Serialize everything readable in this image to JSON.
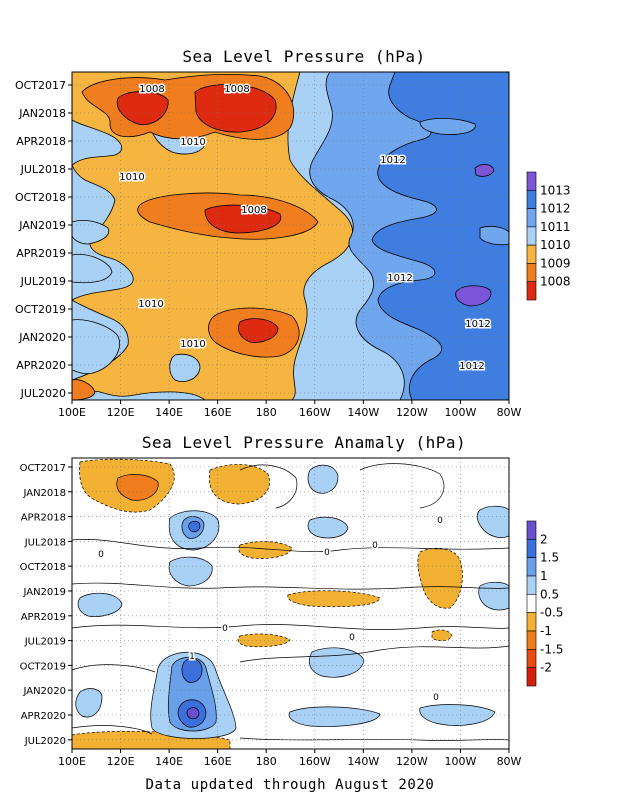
{
  "chart_data": [
    {
      "type": "heatmap",
      "title": "Sea Level Pressure (hPa)",
      "x_tick_labels": [
        "100E",
        "120E",
        "140E",
        "160E",
        "180",
        "160W",
        "140W",
        "120W",
        "100W",
        "80W"
      ],
      "y_tick_labels": [
        "OCT2017",
        "JAN2018",
        "APR2018",
        "JUL2018",
        "OCT2018",
        "JAN2019",
        "APR2019",
        "JUL2019",
        "OCT2019",
        "JAN2020",
        "APR2020",
        "JUL2020"
      ],
      "colorbar": {
        "labels": [
          "1013",
          "1012",
          "1011",
          "1010",
          "1009",
          "1008"
        ],
        "colors": [
          "#7b55d6",
          "#3f7ee0",
          "#6fa6ee",
          "#a9d1f6",
          "#f6b540",
          "#f07d1e",
          "#dd2a10"
        ]
      },
      "contour_labels": [
        "1008",
        "1008",
        "1010",
        "1010",
        "1012",
        "1008",
        "1012",
        "1010",
        "1012",
        "1010",
        "1012"
      ],
      "grid": true
    },
    {
      "type": "heatmap",
      "title": "Sea Level Pressure Anamaly (hPa)",
      "x_tick_labels": [
        "100E",
        "120E",
        "140E",
        "160E",
        "180",
        "160W",
        "140W",
        "120W",
        "100W",
        "80W"
      ],
      "y_tick_labels": [
        "OCT2017",
        "JAN2018",
        "APR2018",
        "JUL2018",
        "OCT2018",
        "JAN2019",
        "APR2019",
        "JUL2019",
        "OCT2019",
        "JAN2020",
        "APR2020",
        "JUL2020"
      ],
      "colorbar": {
        "labels": [
          "2",
          "1.5",
          "1",
          "0.5",
          "-0.5",
          "-1",
          "-1.5",
          "-2"
        ],
        "colors": [
          "#6a4fd0",
          "#3b6fdc",
          "#6aa0ea",
          "#a9d1f6",
          "#ffffff",
          "#f3b133",
          "#f07e1c",
          "#e84c10",
          "#d51d0c"
        ]
      },
      "contour_labels": [
        "1",
        "0",
        "0",
        "0",
        "0",
        "0",
        "0",
        "0"
      ],
      "grid": true
    }
  ],
  "footer": "Data updated through August 2020"
}
